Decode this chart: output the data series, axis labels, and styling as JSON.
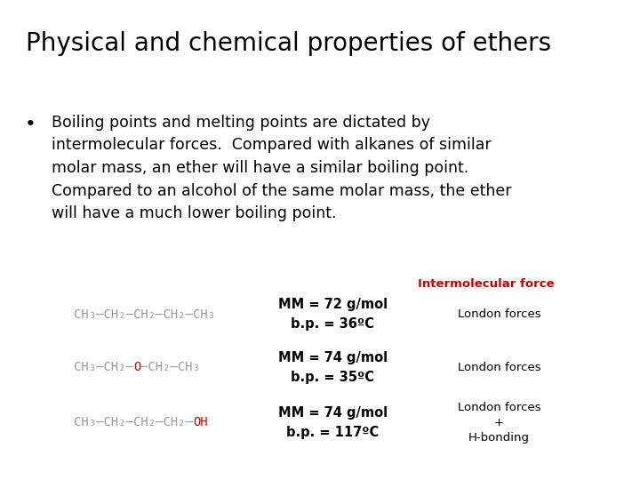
{
  "title": "Physical and chemical properties of ethers",
  "bullet_text": "Boiling points and melting points are dictated by\nintermolecular forces.  Compared with alkanes of similar\nmolar mass, an ether will have a similar boiling point.\nCompared to an alcohol of the same molar mass, the ether\nwill have a much lower boiling point.",
  "header_label": "Intermolecular force",
  "header_label_color": "#cc0000",
  "bg_color": "#ffffff",
  "title_fontsize": 20,
  "bullet_fontsize": 12.5,
  "formula_fontsize": 10,
  "props_fontsize": 10.5,
  "force_fontsize": 9.5,
  "rows": [
    {
      "left_gray": "CH₃–CH₂–CH₂–CH₂–CH₃",
      "red_part": "",
      "right_gray": "",
      "mm": "MM = 72 g/mol",
      "bp": "b.p. = 36ºC",
      "force": "London forces"
    },
    {
      "left_gray": "CH₃–CH₂–",
      "red_part": "O",
      "right_gray": "—CH₂–CH₃",
      "mm": "MM = 74 g/mol",
      "bp": "b.p. = 35ºC",
      "force": "London forces"
    },
    {
      "left_gray": "CH₃–CH₂–CH₂–CH₂–",
      "red_part": "OH",
      "right_gray": "",
      "mm": "MM = 74 g/mol",
      "bp": "b.p. = 117ºC",
      "force": "London forces\n+\nH-bonding"
    }
  ]
}
